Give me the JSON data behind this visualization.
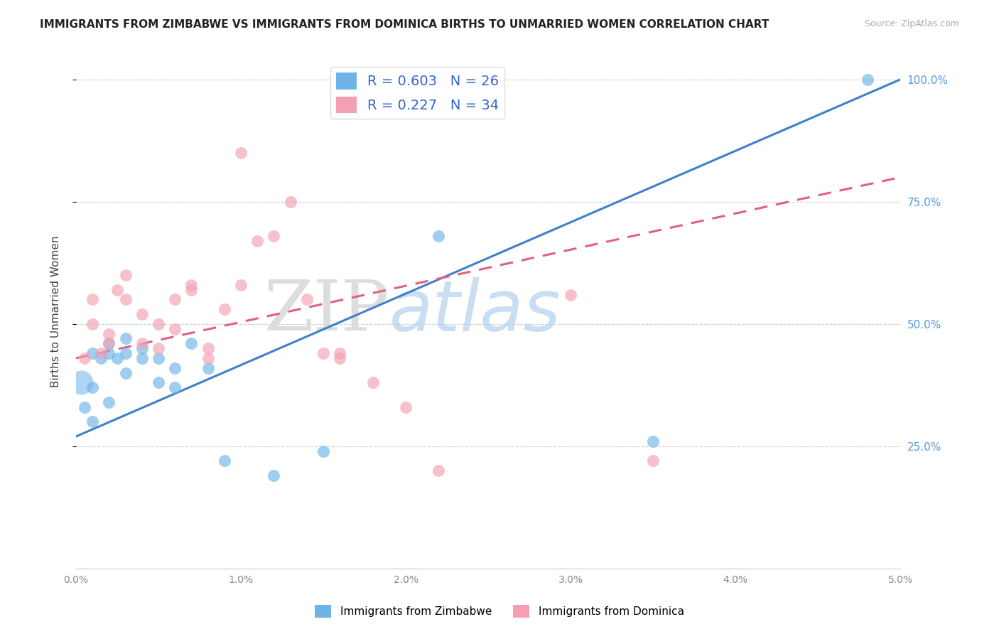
{
  "title": "IMMIGRANTS FROM ZIMBABWE VS IMMIGRANTS FROM DOMINICA BIRTHS TO UNMARRIED WOMEN CORRELATION CHART",
  "source": "Source: ZipAtlas.com",
  "ylabel": "Births to Unmarried Women",
  "ytick_labels": [
    "25.0%",
    "50.0%",
    "75.0%",
    "100.0%"
  ],
  "ytick_vals": [
    0.25,
    0.5,
    0.75,
    1.0
  ],
  "xlim": [
    0.0,
    0.05
  ],
  "ylim": [
    0.0,
    1.05
  ],
  "r_zimbabwe": 0.603,
  "n_zimbabwe": 26,
  "r_dominica": 0.227,
  "n_dominica": 34,
  "legend_labels": [
    "Immigrants from Zimbabwe",
    "Immigrants from Dominica"
  ],
  "color_zimbabwe": "#6EB4E8",
  "color_dominica": "#F4A0B0",
  "line_color_zimbabwe": "#4080C8",
  "line_color_dominica": "#E06080",
  "watermark_zip": "ZIP",
  "watermark_atlas": "atlas",
  "zimbabwe_line_x0": 0.0,
  "zimbabwe_line_y0": 0.27,
  "zimbabwe_line_x1": 0.05,
  "zimbabwe_line_y1": 1.0,
  "dominica_line_x0": 0.0,
  "dominica_line_y0": 0.43,
  "dominica_line_x1": 0.05,
  "dominica_line_y1": 0.8,
  "zimbabwe_x": [
    0.0005,
    0.001,
    0.001,
    0.001,
    0.0015,
    0.002,
    0.002,
    0.002,
    0.0025,
    0.003,
    0.003,
    0.003,
    0.004,
    0.004,
    0.005,
    0.005,
    0.006,
    0.006,
    0.007,
    0.008,
    0.009,
    0.012,
    0.015,
    0.022,
    0.035,
    0.048
  ],
  "zimbabwe_y": [
    0.33,
    0.3,
    0.37,
    0.44,
    0.43,
    0.44,
    0.46,
    0.34,
    0.43,
    0.44,
    0.47,
    0.4,
    0.43,
    0.45,
    0.43,
    0.38,
    0.41,
    0.37,
    0.46,
    0.41,
    0.22,
    0.19,
    0.24,
    0.68,
    0.26,
    1.0
  ],
  "dominica_x": [
    0.0005,
    0.001,
    0.001,
    0.0015,
    0.002,
    0.002,
    0.0025,
    0.003,
    0.003,
    0.004,
    0.004,
    0.005,
    0.005,
    0.006,
    0.006,
    0.007,
    0.007,
    0.008,
    0.008,
    0.009,
    0.01,
    0.01,
    0.011,
    0.012,
    0.013,
    0.014,
    0.015,
    0.016,
    0.016,
    0.018,
    0.02,
    0.022,
    0.03,
    0.035
  ],
  "dominica_y": [
    0.43,
    0.5,
    0.55,
    0.44,
    0.48,
    0.46,
    0.57,
    0.6,
    0.55,
    0.52,
    0.46,
    0.45,
    0.5,
    0.55,
    0.49,
    0.57,
    0.58,
    0.45,
    0.43,
    0.53,
    0.85,
    0.58,
    0.67,
    0.68,
    0.75,
    0.55,
    0.44,
    0.44,
    0.43,
    0.38,
    0.33,
    0.2,
    0.56,
    0.22
  ]
}
